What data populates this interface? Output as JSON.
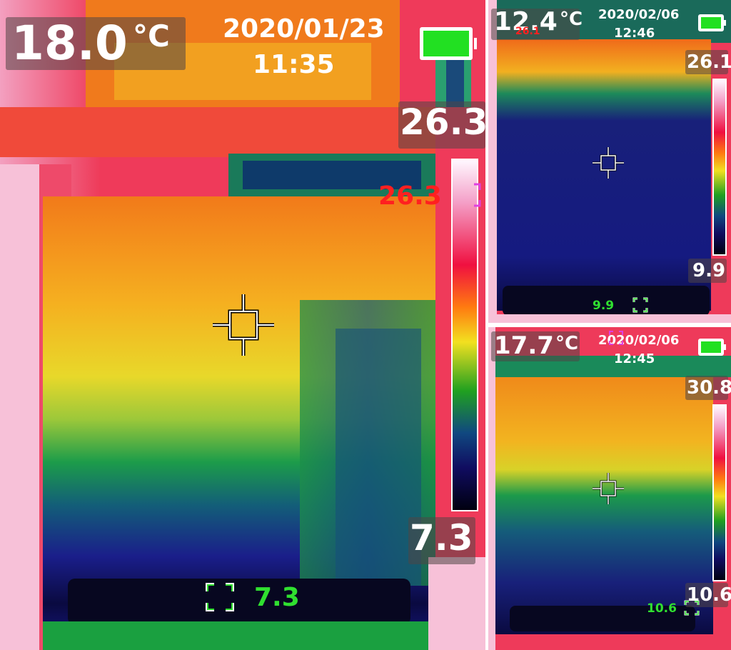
{
  "panels": {
    "main": {
      "temperature": "18.0",
      "unit": "°C",
      "date": "2020/01/23",
      "time": "11:35",
      "scale_max": "26.3",
      "scale_min": "7.3",
      "hot_marker": "26.3",
      "cold_marker": "7.3"
    },
    "top_right": {
      "temperature": "12.4",
      "unit": "°C",
      "date": "2020/02/06",
      "time": "12:46",
      "scale_max": "26.1",
      "scale_min": "9.9",
      "hot_marker": "26.1",
      "cold_marker": "9.9"
    },
    "bottom_right": {
      "temperature": "17.7",
      "unit": "°C",
      "date": "2020/02/06",
      "time": "12:45",
      "scale_max": "30.8",
      "scale_min": "10.6",
      "cold_marker": "10.6"
    }
  },
  "colors": {
    "hot_marker": "#ff2020",
    "cold_marker": "#30e030",
    "battery": "#22e022",
    "text": "#ffffff"
  },
  "icons": [
    "crosshair-icon",
    "battery-icon",
    "focus-bracket-icon",
    "color-scale-bar"
  ]
}
